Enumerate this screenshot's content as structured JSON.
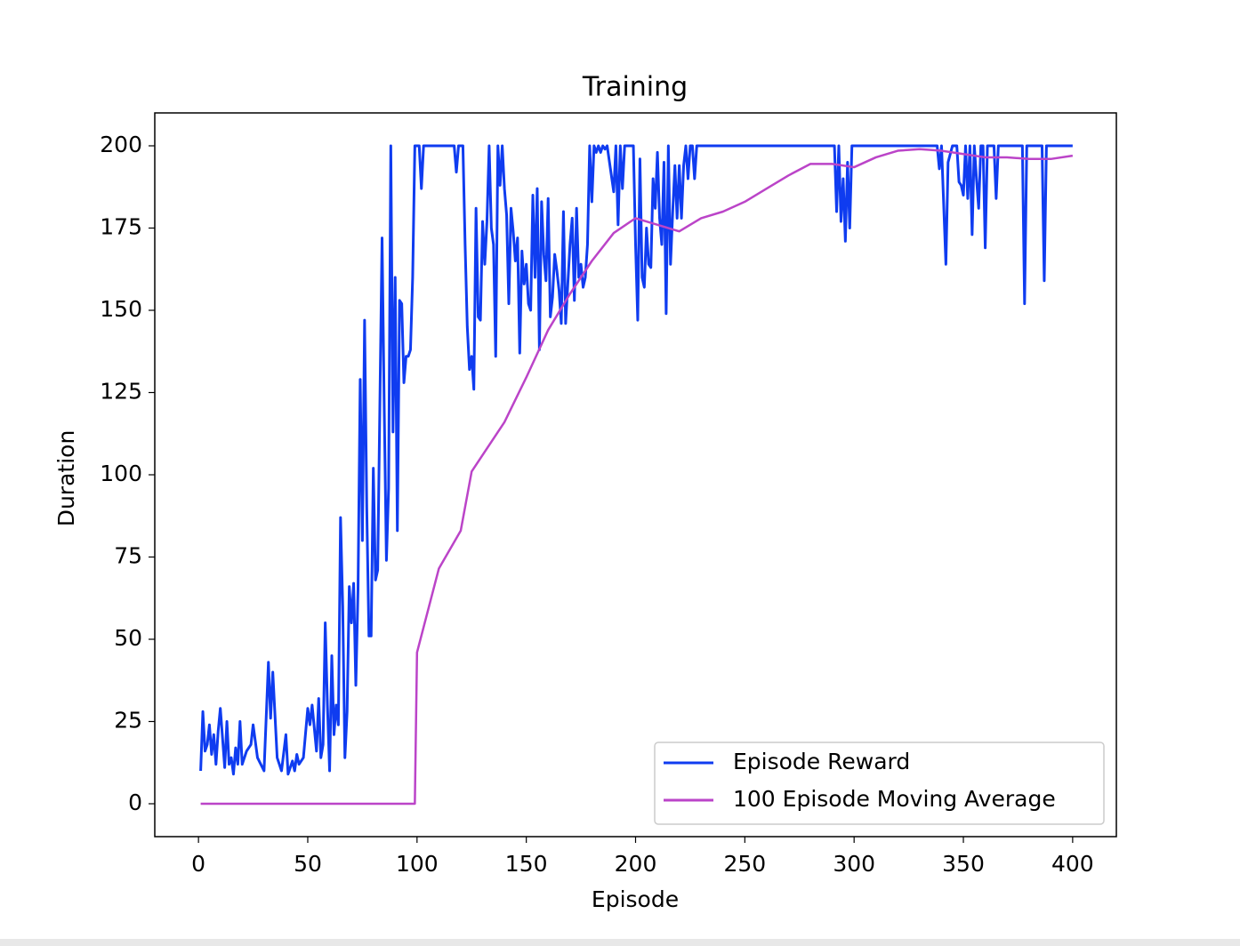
{
  "chart_data": {
    "type": "line",
    "title": "Training",
    "xlabel": "Episode",
    "ylabel": "Duration",
    "xlim": [
      -20,
      420
    ],
    "ylim": [
      -10,
      210
    ],
    "xticks": [
      0,
      50,
      100,
      150,
      200,
      250,
      300,
      350,
      400
    ],
    "yticks": [
      0,
      25,
      50,
      75,
      100,
      125,
      150,
      175,
      200
    ],
    "grid": false,
    "legend": "lower right",
    "series": [
      {
        "name": "Episode Reward",
        "color": "#0f3cf0",
        "x": [
          1,
          2,
          3,
          4,
          5,
          6,
          7,
          8,
          9,
          10,
          11,
          12,
          13,
          14,
          15,
          16,
          17,
          18,
          19,
          20,
          22,
          24,
          25,
          27,
          30,
          32,
          33,
          34,
          36,
          38,
          40,
          41,
          43,
          44,
          45,
          46,
          48,
          50,
          51,
          52,
          54,
          55,
          56,
          57,
          58,
          59,
          60,
          61,
          62,
          63,
          64,
          65,
          66,
          67,
          68,
          69,
          70,
          71,
          72,
          73,
          74,
          75,
          76,
          77,
          78,
          79,
          80,
          81,
          82,
          84,
          85,
          86,
          87,
          88,
          89,
          90,
          91,
          92,
          93,
          94,
          95,
          96,
          97,
          98,
          99,
          100,
          101,
          102,
          103,
          104,
          108,
          112,
          117,
          118,
          119,
          120,
          121,
          122,
          123,
          124,
          125,
          126,
          127,
          128,
          129,
          130,
          131,
          132,
          133,
          134,
          135,
          136,
          137,
          138,
          139,
          140,
          141,
          142,
          143,
          144,
          145,
          146,
          147,
          148,
          149,
          150,
          151,
          152,
          153,
          154,
          155,
          156,
          157,
          158,
          159,
          160,
          161,
          162,
          163,
          164,
          165,
          166,
          167,
          168,
          169,
          170,
          171,
          172,
          173,
          174,
          175,
          176,
          177,
          178,
          179,
          180,
          181,
          182,
          183,
          184,
          185,
          186,
          187,
          190,
          191,
          192,
          193,
          194,
          195,
          196,
          199,
          200,
          201,
          202,
          203,
          204,
          205,
          206,
          207,
          208,
          209,
          210,
          211,
          212,
          213,
          214,
          215,
          216,
          217,
          218,
          219,
          220,
          221,
          222,
          223,
          224,
          225,
          226,
          227,
          228,
          229,
          291,
          292,
          293,
          294,
          295,
          296,
          297,
          298,
          299,
          338,
          339,
          340,
          342,
          343,
          345,
          347,
          348,
          349,
          350,
          351,
          352,
          353,
          354,
          355,
          356,
          357,
          358,
          359,
          360,
          361,
          364,
          365,
          366,
          377,
          378,
          379,
          386,
          387,
          388,
          400
        ],
        "values": [
          10,
          28,
          16,
          18,
          24,
          15,
          21,
          12,
          22,
          29,
          20,
          11,
          25,
          12,
          14,
          9,
          17,
          12,
          25,
          12,
          16,
          18,
          24,
          14,
          10,
          43,
          26,
          40,
          14,
          10,
          21,
          9,
          13,
          10,
          15,
          12,
          14,
          29,
          24,
          30,
          16,
          32,
          14,
          18,
          55,
          30,
          10,
          45,
          21,
          30,
          24,
          87,
          60,
          14,
          28,
          66,
          55,
          67,
          36,
          65,
          129,
          80,
          147,
          90,
          51,
          51,
          102,
          68,
          71,
          172,
          120,
          74,
          96,
          200,
          113,
          160,
          83,
          153,
          152,
          128,
          136,
          136,
          138,
          160,
          200,
          200,
          200,
          187,
          200,
          200,
          200,
          200,
          200,
          192,
          200,
          200,
          200,
          170,
          145,
          132,
          136,
          126,
          181,
          148,
          147,
          177,
          164,
          177,
          200,
          175,
          170,
          136,
          200,
          188,
          200,
          187,
          179,
          152,
          181,
          174,
          165,
          172,
          137,
          168,
          158,
          164,
          152,
          150,
          185,
          160,
          187,
          138,
          183,
          167,
          159,
          184,
          148,
          154,
          167,
          162,
          156,
          146,
          180,
          146,
          158,
          170,
          178,
          153,
          181,
          160,
          164,
          157,
          160,
          170,
          200,
          183,
          200,
          198,
          200,
          198,
          200,
          199,
          200,
          186,
          200,
          176,
          200,
          187,
          200,
          200,
          200,
          170,
          147,
          196,
          160,
          157,
          175,
          164,
          163,
          190,
          181,
          198,
          178,
          170,
          195,
          149,
          200,
          164,
          180,
          194,
          178,
          194,
          178,
          194,
          200,
          190,
          200,
          200,
          190,
          200,
          200,
          200,
          180,
          200,
          177,
          190,
          171,
          195,
          175,
          200,
          200,
          193,
          200,
          164,
          195,
          200,
          200,
          189,
          188,
          185,
          200,
          184,
          200,
          173,
          200,
          190,
          181,
          200,
          200,
          169,
          200,
          200,
          184,
          200,
          200,
          152,
          200,
          200,
          159,
          200,
          200
        ]
      },
      {
        "name": "100 Episode Moving Average",
        "color": "#bb44c8",
        "x": [
          1,
          99,
          100,
          110,
          120,
          125,
          140,
          150,
          160,
          170,
          180,
          190,
          200,
          210,
          220,
          230,
          240,
          250,
          260,
          270,
          280,
          290,
          300,
          310,
          320,
          330,
          340,
          350,
          360,
          370,
          380,
          390,
          400
        ],
        "values": [
          0,
          0,
          46,
          71.5,
          83,
          101,
          116,
          129.6,
          144,
          155,
          165,
          173.5,
          178,
          176,
          174,
          178,
          180,
          183,
          187,
          191,
          194.5,
          194.5,
          193.5,
          196.5,
          198.5,
          199,
          198.5,
          197.5,
          196.5,
          196.5,
          196,
          196,
          197
        ]
      }
    ]
  }
}
